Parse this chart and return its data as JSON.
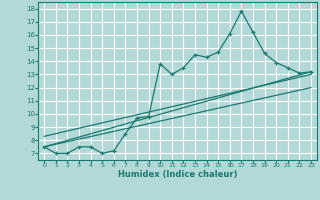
{
  "xlabel": "Humidex (Indice chaleur)",
  "bg_color": "#b2d8d8",
  "grid_color": "#ffffff",
  "line_color": "#1a7a6e",
  "xlim": [
    -0.5,
    23.5
  ],
  "ylim": [
    6.5,
    18.5
  ],
  "xticks": [
    0,
    1,
    2,
    3,
    4,
    5,
    6,
    7,
    8,
    9,
    10,
    11,
    12,
    13,
    14,
    15,
    16,
    17,
    18,
    19,
    20,
    21,
    22,
    23
  ],
  "yticks": [
    7,
    8,
    9,
    10,
    11,
    12,
    13,
    14,
    15,
    16,
    17,
    18
  ],
  "main_series_x": [
    0,
    1,
    2,
    3,
    4,
    5,
    6,
    7,
    8,
    9,
    10,
    11,
    12,
    13,
    14,
    15,
    16,
    17,
    18,
    19,
    20,
    21,
    22,
    23
  ],
  "main_series_y": [
    7.5,
    7.0,
    7.0,
    7.5,
    7.5,
    7.0,
    7.2,
    8.5,
    9.7,
    9.8,
    13.8,
    13.0,
    13.5,
    14.5,
    14.3,
    14.7,
    16.1,
    17.8,
    16.2,
    14.6,
    13.9,
    13.5,
    13.1,
    13.2
  ],
  "trend1_x": [
    0,
    23
  ],
  "trend1_y": [
    7.5,
    13.2
  ],
  "trend2_x": [
    0,
    23
  ],
  "trend2_y": [
    7.5,
    12.0
  ],
  "trend3_x": [
    0,
    23
  ],
  "trend3_y": [
    8.3,
    13.0
  ]
}
